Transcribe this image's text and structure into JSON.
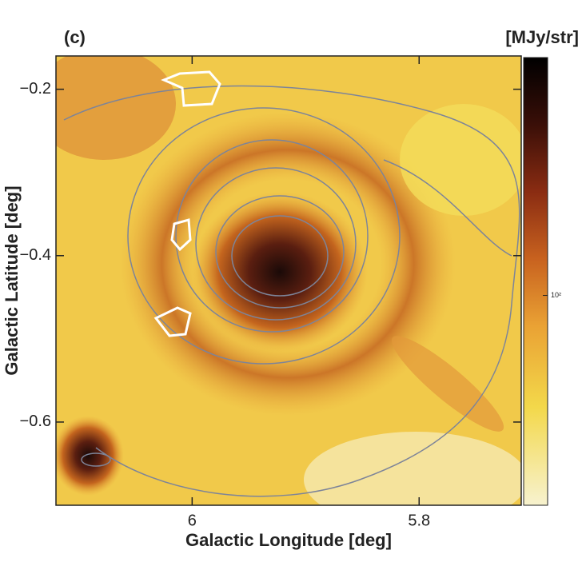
{
  "chart_data": {
    "type": "heatmap",
    "title": "(c)",
    "colorbar_label": "[MJy/str]",
    "x_label": "Galactic Longitude [deg]",
    "y_label": "Galactic Latitude [deg]",
    "xlim": [
      6.12,
      5.71
    ],
    "xticks": [
      6,
      5.8
    ],
    "ylim": [
      -0.7,
      -0.16
    ],
    "yticks": [
      {
        "value": -0.2,
        "label": "−0.2"
      },
      {
        "value": -0.4,
        "label": "−0.4"
      },
      {
        "value": -0.6,
        "label": "−0.6"
      }
    ],
    "clim": [
      20,
      620
    ],
    "color_log_scale": true,
    "cticks": [
      {
        "value": 100,
        "label": "10²"
      }
    ]
  }
}
